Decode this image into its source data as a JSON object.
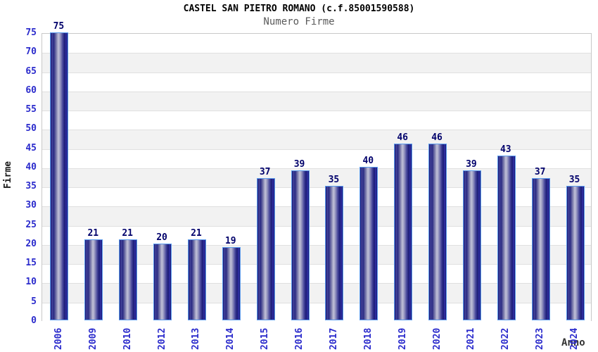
{
  "header": {
    "title": "CASTEL SAN PIETRO ROMANO (c.f.85001590588)",
    "subtitle": "Numero Firme"
  },
  "chart_data": {
    "type": "bar",
    "title": "CASTEL SAN PIETRO ROMANO (c.f.85001590588)",
    "subtitle": "Numero Firme",
    "categories": [
      "2006",
      "2009",
      "2010",
      "2012",
      "2013",
      "2014",
      "2015",
      "2016",
      "2017",
      "2018",
      "2019",
      "2020",
      "2021",
      "2022",
      "2023",
      "2024"
    ],
    "values": [
      75,
      21,
      21,
      20,
      21,
      19,
      37,
      39,
      35,
      40,
      46,
      46,
      39,
      43,
      37,
      35
    ],
    "xlabel": "Anno",
    "ylabel": "Firme",
    "ylim": [
      0,
      75
    ],
    "ytick_step": 5,
    "grid": true,
    "legend": false,
    "value_labels": true,
    "colors": {
      "bar_border": "#5b9bed",
      "bar_dark": "#17176e",
      "bar_light": "#c2c2d8",
      "value_label": "#00006b",
      "tick_label": "#2b2bcc",
      "band_gray": "#f2f2f2",
      "band_white": "#ffffff",
      "gridline": "#e0e0e0",
      "plot_border": "#c8c8c8",
      "title": "#000000",
      "subtitle": "#5a5a5a",
      "axis_title": "#1a1a1a"
    }
  }
}
